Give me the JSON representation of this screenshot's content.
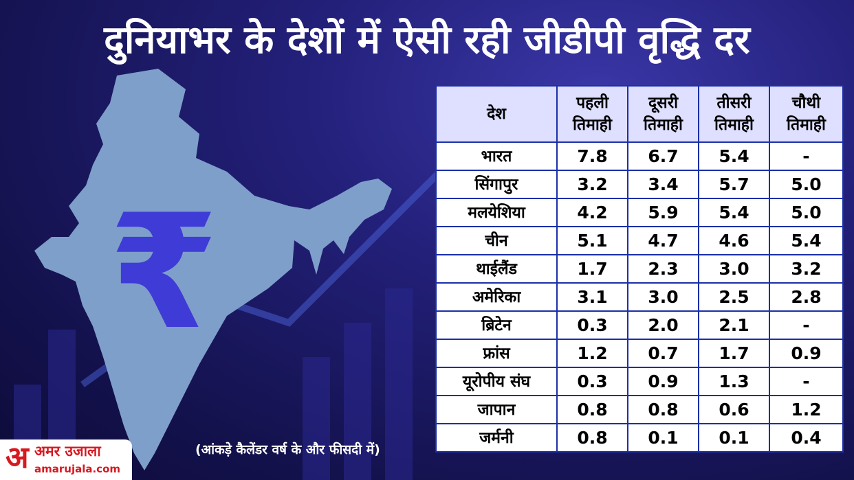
{
  "title": "दुनियाभर के देशों में ऐसी रही जीडीपी वृद्धि दर",
  "table": {
    "header": {
      "country": "देश",
      "q1_line1": "पहली",
      "q1_line2": "तिमाही",
      "q2_line1": "दूसरी",
      "q2_line2": "तिमाही",
      "q3_line1": "तीसरी",
      "q3_line2": "तिमाही",
      "q4_line1": "चौथी",
      "q4_line2": "तिमाही"
    },
    "rows": [
      {
        "country": "भारत",
        "q1": "7.8",
        "q2": "6.7",
        "q3": "5.4",
        "q4": "-"
      },
      {
        "country": "सिंगापुर",
        "q1": "3.2",
        "q2": "3.4",
        "q3": "5.7",
        "q4": "5.0"
      },
      {
        "country": "मलयेशिया",
        "q1": "4.2",
        "q2": "5.9",
        "q3": "5.4",
        "q4": "5.0"
      },
      {
        "country": "चीन",
        "q1": "5.1",
        "q2": "4.7",
        "q3": "4.6",
        "q4": "5.4"
      },
      {
        "country": "थाईलैंड",
        "q1": "1.7",
        "q2": "2.3",
        "q3": "3.0",
        "q4": "3.2"
      },
      {
        "country": "अमेरिका",
        "q1": "3.1",
        "q2": "3.0",
        "q3": "2.5",
        "q4": "2.8"
      },
      {
        "country": "ब्रिटेन",
        "q1": "0.3",
        "q2": "2.0",
        "q3": "2.1",
        "q4": "-"
      },
      {
        "country": "फ्रांस",
        "q1": "1.2",
        "q2": "0.7",
        "q3": "1.7",
        "q4": "0.9"
      },
      {
        "country": "यूरोपीय संघ",
        "q1": "0.3",
        "q2": "0.9",
        "q3": "1.3",
        "q4": "-"
      },
      {
        "country": "जापान",
        "q1": "0.8",
        "q2": "0.8",
        "q3": "0.6",
        "q4": "1.2"
      },
      {
        "country": "जर्मनी",
        "q1": "0.8",
        "q2": "0.1",
        "q3": "0.1",
        "q4": "0.4"
      }
    ]
  },
  "note": "(आंकड़े कैलेंडर वर्ष के और फीसदी में)",
  "logo": {
    "mark": "अ",
    "name": "अमर उजाला",
    "url": "amarujala.com"
  },
  "map": {
    "icon": "india-map-icon",
    "symbol": "₹"
  },
  "colors": {
    "background": "#1f1d6e",
    "map_fill": "#7f9fcb",
    "rupee": "#3f3bd6",
    "table_border": "#1b2fa8",
    "header_fill": "#dfe0ff",
    "logo_red": "#d71920"
  }
}
